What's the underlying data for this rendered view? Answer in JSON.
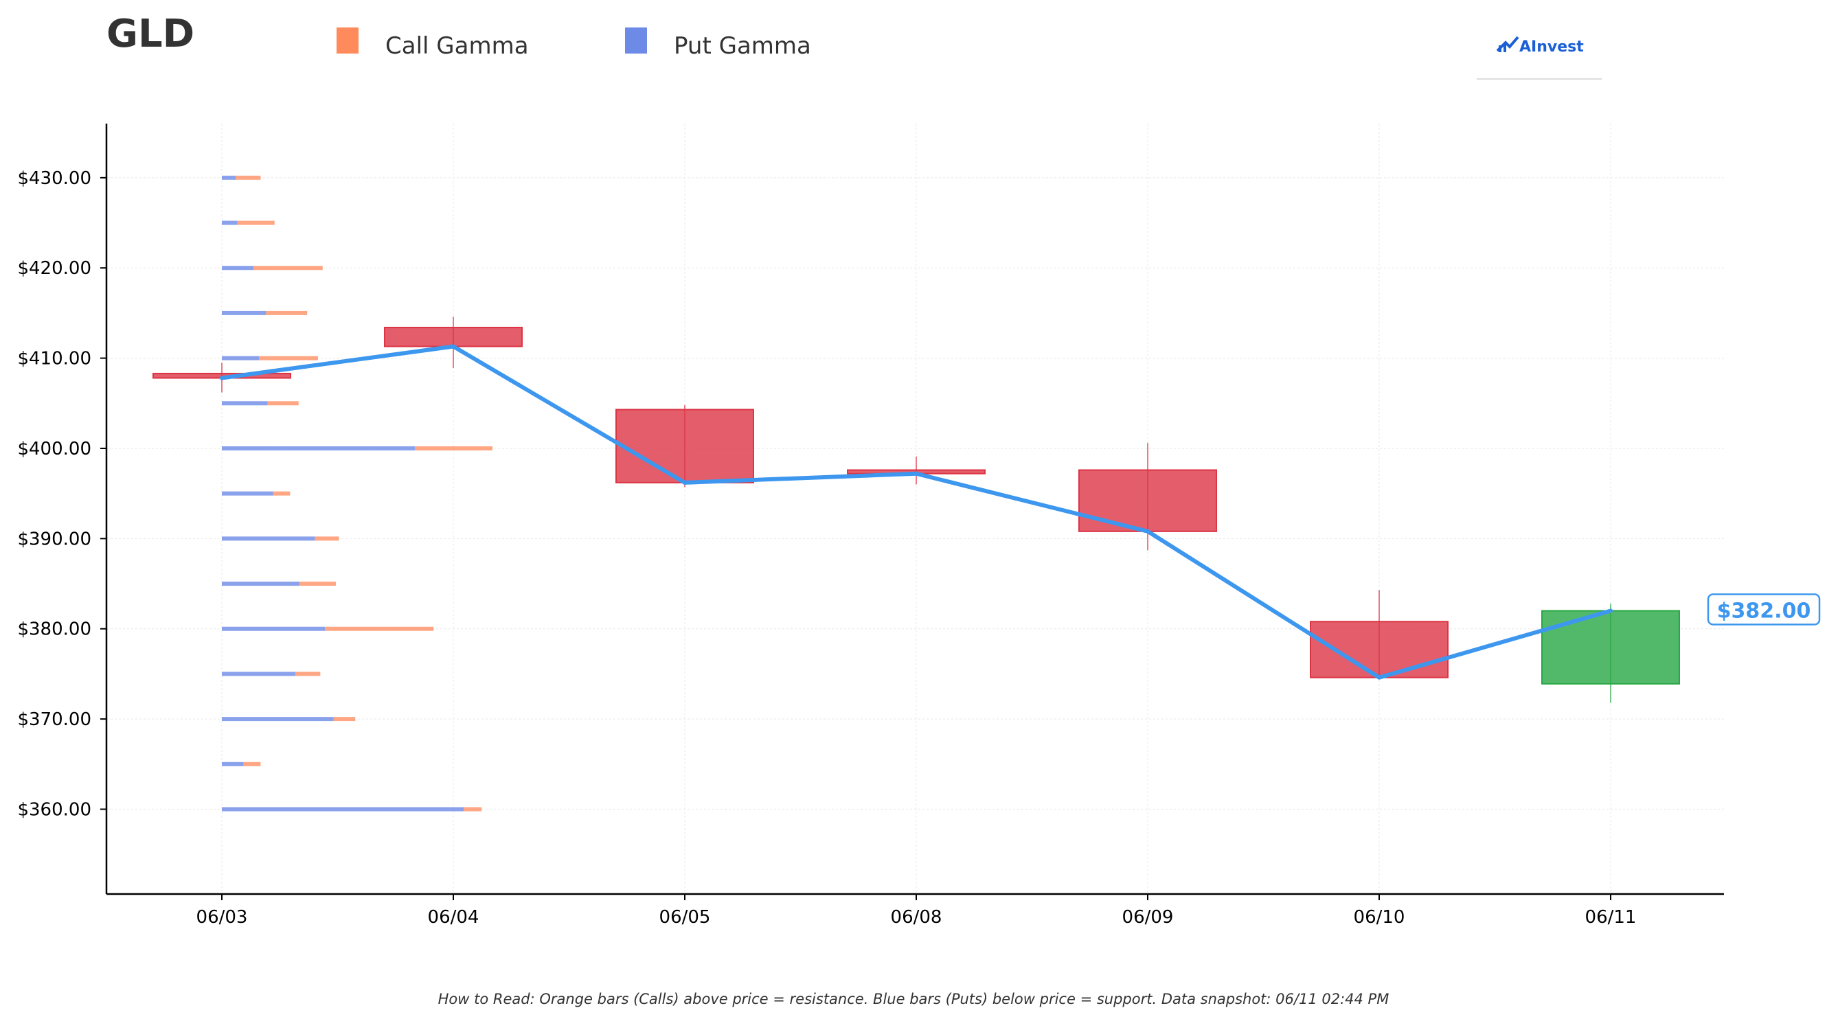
{
  "chart_data": {
    "type": "candlestick",
    "title": "GLD",
    "legend": [
      {
        "name": "Call Gamma",
        "color": "#ff8a5b"
      },
      {
        "name": "Put Gamma",
        "color": "#6d8ae6"
      }
    ],
    "legend_placement": "top",
    "categories": [
      "06/03",
      "06/04",
      "06/05",
      "06/08",
      "06/09",
      "06/10",
      "06/11"
    ],
    "ylim": [
      350.6,
      436.0
    ],
    "xlim": [
      -0.5,
      6.5
    ],
    "y_ticks": [
      {
        "value": 360,
        "label": "$360.00"
      },
      {
        "value": 370,
        "label": "$370.00"
      },
      {
        "value": 380,
        "label": "$380.00"
      },
      {
        "value": 390,
        "label": "$390.00"
      },
      {
        "value": 400,
        "label": "$400.00"
      },
      {
        "value": 410,
        "label": "$410.00"
      },
      {
        "value": 420,
        "label": "$420.00"
      },
      {
        "value": 430,
        "label": "$430.00"
      }
    ],
    "grid": true,
    "candles": [
      {
        "date": "06/03",
        "open": 408.3,
        "high": 409.5,
        "low": 406.2,
        "close": 407.8,
        "color": "#dc3545"
      },
      {
        "date": "06/04",
        "open": 413.4,
        "high": 414.6,
        "low": 408.9,
        "close": 411.3,
        "color": "#dc3545"
      },
      {
        "date": "06/05",
        "open": 404.3,
        "high": 404.8,
        "low": 395.7,
        "close": 396.2,
        "color": "#dc3545"
      },
      {
        "date": "06/08",
        "open": 397.6,
        "high": 399.1,
        "low": 396.0,
        "close": 397.2,
        "color": "#dc3545"
      },
      {
        "date": "06/09",
        "open": 397.6,
        "high": 400.6,
        "low": 388.7,
        "close": 390.8,
        "color": "#dc3545"
      },
      {
        "date": "06/10",
        "open": 380.8,
        "high": 384.3,
        "low": 374.5,
        "close": 374.6,
        "color": "#dc3545"
      },
      {
        "date": "06/11",
        "open": 373.9,
        "high": 382.8,
        "low": 371.8,
        "close": 382.0,
        "color": "#28a745"
      }
    ],
    "close_line": {
      "values": [
        407.8,
        411.3,
        396.2,
        397.2,
        390.8,
        374.6,
        382.0
      ],
      "color": "#3d97ee"
    },
    "gamma_levels": [
      {
        "strike": 430,
        "put": 0.18,
        "call": 0.32
      },
      {
        "strike": 425,
        "put": 0.2,
        "call": 0.48
      },
      {
        "strike": 420,
        "put": 0.41,
        "call": 0.89
      },
      {
        "strike": 415,
        "put": 0.57,
        "call": 0.53
      },
      {
        "strike": 410,
        "put": 0.48,
        "call": 0.76
      },
      {
        "strike": 405,
        "put": 0.59,
        "call": 0.4
      },
      {
        "strike": 400,
        "put": 2.49,
        "call": 1.0
      },
      {
        "strike": 395,
        "put": 0.66,
        "call": 0.22
      },
      {
        "strike": 390,
        "put": 1.2,
        "call": 0.31
      },
      {
        "strike": 385,
        "put": 1.0,
        "call": 0.47
      },
      {
        "strike": 380,
        "put": 1.33,
        "call": 1.4
      },
      {
        "strike": 375,
        "put": 0.95,
        "call": 0.32
      },
      {
        "strike": 370,
        "put": 1.44,
        "call": 0.28
      },
      {
        "strike": 365,
        "put": 0.28,
        "call": 0.22
      },
      {
        "strike": 360,
        "put": 3.12,
        "call": 0.23
      }
    ],
    "gamma_x_range": [
      0,
      7.0
    ],
    "current_price": {
      "value": 382.0,
      "label": "$382.00",
      "color": "#3d97ee"
    },
    "footnote": "How to Read: Orange bars (Calls) above price = resistance. Blue bars (Puts) below price = support. Data snapshot: 06/11 02:44 PM"
  },
  "logo": {
    "text": "AInvest",
    "color": "#1a5fd6"
  }
}
